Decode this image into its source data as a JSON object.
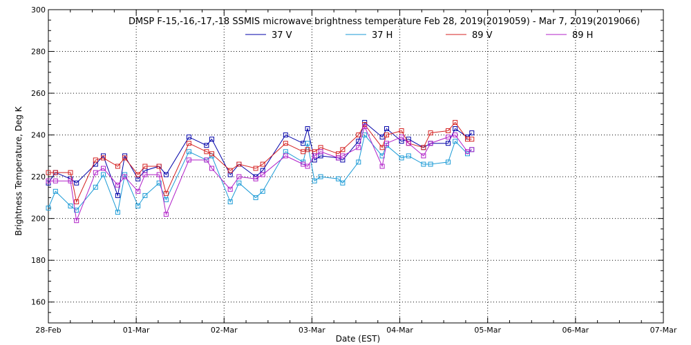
{
  "chart_data": {
    "type": "line",
    "title": "DMSP F-15,-16,-17,-18 SSMIS microwave brightness temperature Feb 28, 2019(2019059) - Mar  7, 2019(2019066)",
    "xlabel": "Date (EST)",
    "ylabel": "Brightness Temperature, Deg K",
    "xlim": [
      0,
      7
    ],
    "ylim": [
      150,
      300
    ],
    "xticks": [
      0,
      1,
      2,
      3,
      4,
      5,
      6,
      7
    ],
    "xtick_labels": [
      "28-Feb",
      "01-Mar",
      "02-Mar",
      "03-Mar",
      "04-Mar",
      "05-Mar",
      "06-Mar",
      "07-Mar"
    ],
    "yticks": [
      160,
      180,
      200,
      220,
      240,
      260,
      280,
      300
    ],
    "ytick_labels": [
      "160",
      "180",
      "200",
      "220",
      "240",
      "260",
      "280",
      "300"
    ],
    "grid": true,
    "legend_position": "top-center",
    "x": [
      0.0,
      0.081,
      0.252,
      0.32,
      0.537,
      0.625,
      0.79,
      0.87,
      1.02,
      1.1,
      1.26,
      1.34,
      1.6,
      1.8,
      1.86,
      2.07,
      2.17,
      2.36,
      2.44,
      2.7,
      2.9,
      2.95,
      3.03,
      3.1,
      3.3,
      3.35,
      3.53,
      3.6,
      3.8,
      3.85,
      4.02,
      4.1,
      4.27,
      4.35,
      4.55,
      4.63,
      4.77,
      4.82
    ],
    "series": [
      {
        "name": "37 V",
        "color": "#0000a8",
        "values": [
          217,
          222,
          219,
          217,
          226,
          230,
          211,
          230,
          219,
          223,
          225,
          221,
          239,
          235,
          238,
          221,
          226,
          220,
          223,
          240,
          236,
          243,
          228,
          230,
          229,
          228,
          237,
          246,
          239,
          243,
          237,
          238,
          234,
          236,
          236,
          243,
          239,
          241
        ]
      },
      {
        "name": "37 H",
        "color": "#1a9ad6",
        "values": [
          205,
          213,
          206,
          204,
          215,
          221,
          203,
          221,
          206,
          211,
          217,
          209,
          232,
          228,
          230,
          208,
          217,
          210,
          213,
          232,
          227,
          236,
          218,
          220,
          219,
          217,
          227,
          240,
          230,
          235,
          229,
          230,
          226,
          226,
          227,
          237,
          231,
          233
        ]
      },
      {
        "name": "89 V",
        "color": "#d42020",
        "values": [
          222,
          222,
          222,
          208,
          228,
          229,
          225,
          229,
          221,
          225,
          225,
          212,
          236,
          232,
          231,
          223,
          226,
          224,
          226,
          236,
          232,
          233,
          232,
          234,
          231,
          233,
          240,
          245,
          234,
          240,
          242,
          236,
          234,
          241,
          242,
          246,
          238,
          238
        ]
      },
      {
        "name": "89 H",
        "color": "#b020c8",
        "values": [
          218,
          218,
          218,
          199,
          222,
          224,
          216,
          220,
          213,
          221,
          221,
          202,
          228,
          228,
          224,
          214,
          220,
          219,
          221,
          230,
          226,
          225,
          230,
          232,
          229,
          230,
          234,
          244,
          225,
          236,
          239,
          236,
          230,
          236,
          239,
          240,
          232,
          233
        ]
      }
    ]
  }
}
